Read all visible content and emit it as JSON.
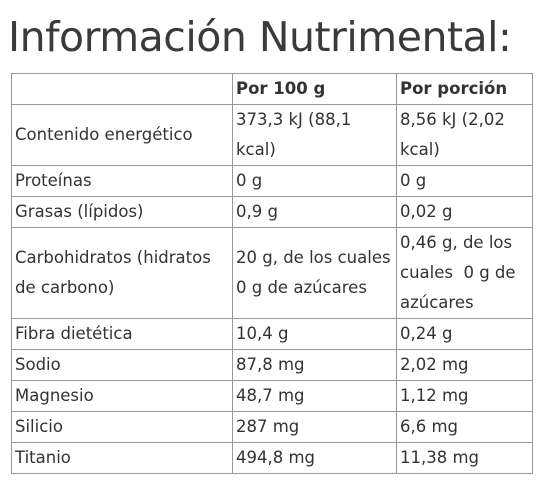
{
  "title": "Información Nutrimental:",
  "table": {
    "columns": [
      "Por 100 g",
      "Por porción"
    ],
    "rows": [
      [
        "Contenido energético",
        "373,3 kJ (88,1 kcal)",
        "8,56 kJ (2,02 kcal)"
      ],
      [
        "Proteínas",
        "0 g",
        "0 g"
      ],
      [
        "Grasas (lípidos)",
        "0,9 g",
        "0,02 g"
      ],
      [
        "Carbohidratos (hidratos de carbono)",
        "20 g, de los cuales 0 g de azúcares",
        "0,46 g, de los cuales  0 g de azúcares"
      ],
      [
        "Fibra dietética",
        "10,4 g",
        "0,24 g"
      ],
      [
        "Sodio",
        "87,8 mg",
        "2,02 mg"
      ],
      [
        "Magnesio",
        "48,7 mg",
        "1,12 mg"
      ],
      [
        "Silicio",
        "287 mg",
        "6,6 mg"
      ],
      [
        "Titanio",
        "494,8 mg",
        "11,38 mg"
      ]
    ]
  }
}
